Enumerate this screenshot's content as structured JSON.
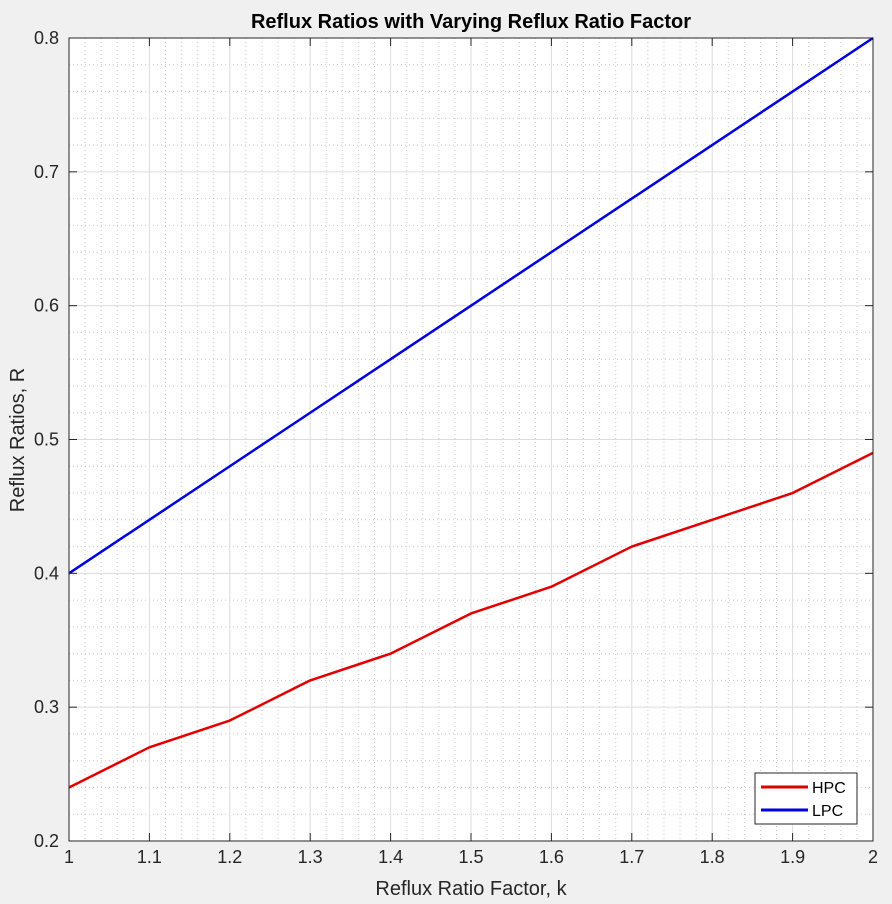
{
  "chart_data": {
    "type": "line",
    "title": "Reflux Ratios with Varying Reflux Ratio Factor",
    "xlabel": "Reflux Ratio Factor, k",
    "ylabel": "Reflux Ratios, R",
    "xlim": [
      1,
      2
    ],
    "ylim": [
      0.2,
      0.8
    ],
    "x_ticks": [
      "1",
      "1.1",
      "1.2",
      "1.3",
      "1.4",
      "1.5",
      "1.6",
      "1.7",
      "1.8",
      "1.9",
      "2"
    ],
    "y_ticks": [
      "0.2",
      "0.3",
      "0.4",
      "0.5",
      "0.6",
      "0.7",
      "0.8"
    ],
    "grid": true,
    "minor_grid": true,
    "legend_position": "bottom-right",
    "x": [
      1.0,
      1.1,
      1.2,
      1.3,
      1.4,
      1.5,
      1.6,
      1.7,
      1.8,
      1.9,
      2.0
    ],
    "series": [
      {
        "name": "HPC",
        "color": "#e00000",
        "values": [
          0.24,
          0.27,
          0.29,
          0.32,
          0.34,
          0.37,
          0.39,
          0.42,
          0.44,
          0.46,
          0.49
        ]
      },
      {
        "name": "LPC",
        "color": "#0000e0",
        "values": [
          0.4,
          0.44,
          0.48,
          0.52,
          0.56,
          0.6,
          0.64,
          0.68,
          0.72,
          0.76,
          0.8
        ]
      }
    ]
  }
}
